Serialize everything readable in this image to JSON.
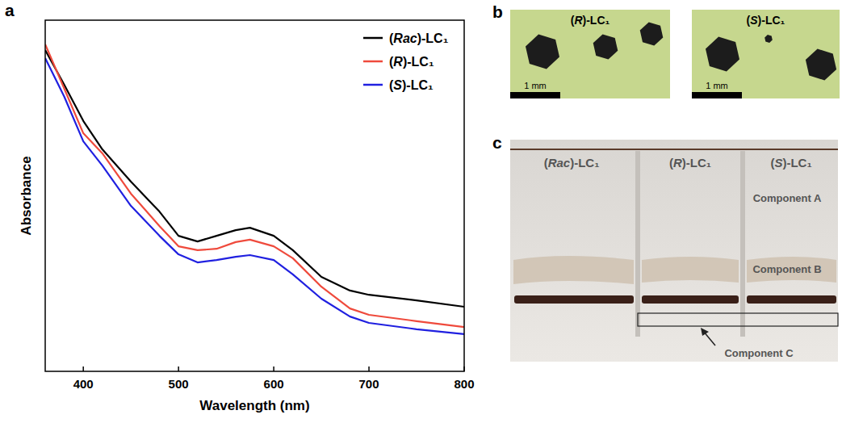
{
  "panel_labels": [
    "a",
    "b",
    "c"
  ],
  "chart_data": {
    "type": "line",
    "xlabel": "Wavelength (nm)",
    "ylabel": "Absorbance",
    "x": [
      360,
      380,
      400,
      420,
      450,
      480,
      500,
      520,
      540,
      560,
      575,
      600,
      620,
      650,
      680,
      700,
      750,
      800
    ],
    "series": [
      {
        "name": "(Rac)-LC₁",
        "color": "#000000",
        "values": [
          0.915,
          0.816,
          0.713,
          0.632,
          0.54,
          0.455,
          0.386,
          0.37,
          0.386,
          0.402,
          0.409,
          0.386,
          0.345,
          0.269,
          0.23,
          0.218,
          0.202,
          0.184
        ]
      },
      {
        "name": "(R)-LC₁",
        "color": "#ef4a3c",
        "values": [
          0.931,
          0.805,
          0.678,
          0.621,
          0.506,
          0.414,
          0.356,
          0.345,
          0.349,
          0.368,
          0.375,
          0.356,
          0.322,
          0.241,
          0.179,
          0.161,
          0.143,
          0.126
        ]
      },
      {
        "name": "(S)-LC₁",
        "color": "#2020e0",
        "values": [
          0.892,
          0.782,
          0.655,
          0.586,
          0.471,
          0.386,
          0.333,
          0.31,
          0.317,
          0.326,
          0.331,
          0.317,
          0.276,
          0.207,
          0.156,
          0.138,
          0.12,
          0.106
        ]
      }
    ],
    "xlim": [
      360,
      800
    ],
    "xticks": [
      400,
      500,
      600,
      700,
      800
    ],
    "ylim": [
      0,
      1
    ],
    "yticks": [],
    "tick_labels": "x",
    "legend": "upper right"
  },
  "micrographs": [
    {
      "label": "(R)-LC₁",
      "scale_bar": "1 mm"
    },
    {
      "label": "(S)-LC₁",
      "scale_bar": "1 mm"
    }
  ],
  "gel": {
    "lanes": [
      "(Rac)-LC₁",
      "(R)-LC₁",
      "(S)-LC₁"
    ],
    "components": [
      "Component A",
      "Component B",
      "Component C"
    ]
  }
}
